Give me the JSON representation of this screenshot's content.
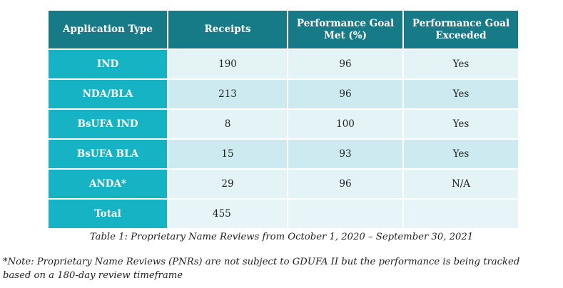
{
  "table": {
    "headers": [
      "Application Type",
      "Receipts",
      "Performance Goal Met (%)",
      "Performance Goal Exceeded"
    ],
    "rows": [
      {
        "type": "IND",
        "receipts": "190",
        "met": "96",
        "exceeded": "Yes"
      },
      {
        "type": "NDA/BLA",
        "receipts": "213",
        "met": "96",
        "exceeded": "Yes"
      },
      {
        "type": "BsUFA IND",
        "receipts": "8",
        "met": "100",
        "exceeded": "Yes"
      },
      {
        "type": "BsUFA BLA",
        "receipts": "15",
        "met": "93",
        "exceeded": "Yes"
      },
      {
        "type": "ANDA*",
        "receipts": "29",
        "met": "96",
        "exceeded": "N/A"
      },
      {
        "type": "Total",
        "receipts": "455",
        "met": "",
        "exceeded": ""
      }
    ]
  },
  "caption": "Table 1: Proprietary Name Reviews from October 1, 2020 – September 30, 2021",
  "note": "*Note: Proprietary Name Reviews (PNRs) are not subject to GDUFA II but the performance is being tracked based on a 180-day review timeframe",
  "colors": {
    "header_bg": "#167a87",
    "row_header_bg": "#15b3c4",
    "cell_bg_light": "#e3f3f6",
    "cell_bg_alt": "#cceaf0"
  }
}
